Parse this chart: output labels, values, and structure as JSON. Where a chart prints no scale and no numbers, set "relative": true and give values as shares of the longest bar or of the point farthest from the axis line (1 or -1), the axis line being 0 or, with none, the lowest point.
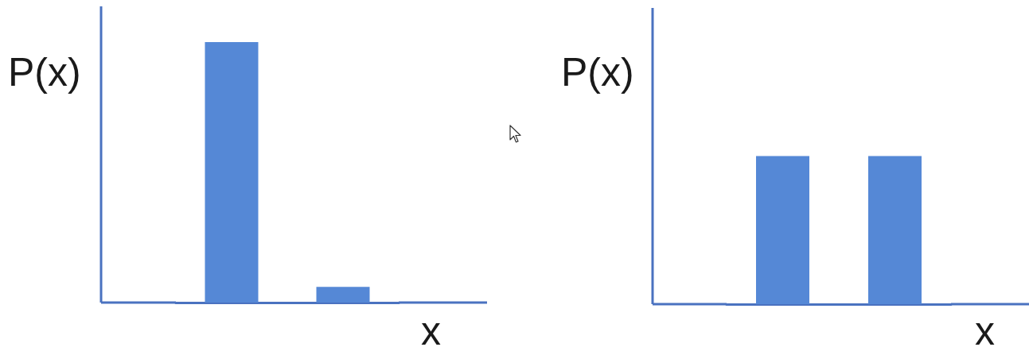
{
  "chart_data": [
    {
      "type": "bar",
      "relative": true,
      "ylabel": "P(x)",
      "xlabel": "x",
      "categories": [
        null,
        null
      ],
      "values": [
        1,
        0.06
      ],
      "color": "#5588d6"
    },
    {
      "type": "bar",
      "relative": true,
      "ylabel": "P(x)",
      "xlabel": "x",
      "categories": [
        null,
        null
      ],
      "values": [
        1,
        1
      ],
      "color": "#5588d6"
    }
  ]
}
